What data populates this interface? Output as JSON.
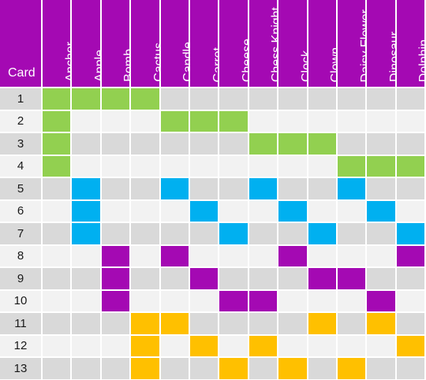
{
  "table": {
    "corner_label": "Card",
    "columns": [
      "Anchor",
      "Apple",
      "Bomb",
      "Cactus",
      "Candle",
      "Carrot",
      "Cheese",
      "Chess Knight",
      "Clock",
      "Clown",
      "Daisy Flower",
      "Dinosaur",
      "Dolphin"
    ],
    "rows": [
      {
        "card": "1",
        "color": "green",
        "marks": [
          0,
          1,
          2,
          3
        ]
      },
      {
        "card": "2",
        "color": "green",
        "marks": [
          0,
          4,
          5,
          6
        ]
      },
      {
        "card": "3",
        "color": "green",
        "marks": [
          0,
          7,
          8,
          9
        ]
      },
      {
        "card": "4",
        "color": "green",
        "marks": [
          0,
          10,
          11,
          12
        ]
      },
      {
        "card": "5",
        "color": "blue",
        "marks": [
          1,
          4,
          7,
          10
        ]
      },
      {
        "card": "6",
        "color": "blue",
        "marks": [
          1,
          5,
          8,
          11
        ]
      },
      {
        "card": "7",
        "color": "blue",
        "marks": [
          1,
          6,
          9,
          12
        ]
      },
      {
        "card": "8",
        "color": "purple",
        "marks": [
          2,
          4,
          8,
          12
        ]
      },
      {
        "card": "9",
        "color": "purple",
        "marks": [
          2,
          5,
          9,
          10
        ]
      },
      {
        "card": "10",
        "color": "purple",
        "marks": [
          2,
          6,
          7,
          11
        ]
      },
      {
        "card": "11",
        "color": "yellow",
        "marks": [
          3,
          4,
          9,
          11
        ]
      },
      {
        "card": "12",
        "color": "yellow",
        "marks": [
          3,
          5,
          7,
          12
        ]
      },
      {
        "card": "13",
        "color": "yellow",
        "marks": [
          3,
          6,
          8,
          10
        ]
      }
    ]
  },
  "colors": {
    "header": "#a409b3",
    "green": "#92d050",
    "blue": "#00b0f0",
    "purple": "#a409b3",
    "yellow": "#ffc000",
    "row_dark": "#d9d9d9",
    "row_light": "#f2f2f2",
    "border": "#ffffff"
  }
}
